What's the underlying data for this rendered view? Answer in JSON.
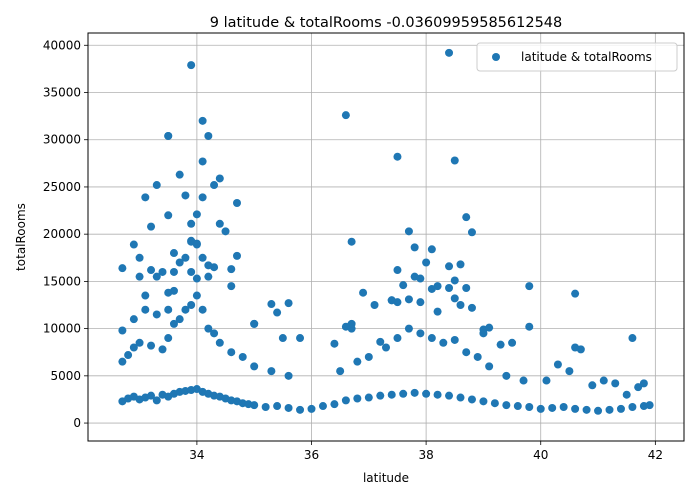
{
  "chart_data": {
    "type": "scatter",
    "title": "9 latitude & totalRooms -0.03609959585612548",
    "xlabel": "latitude",
    "ylabel": "totalRooms",
    "xlim": [
      32.1,
      42.5
    ],
    "ylim": [
      -1900,
      41300
    ],
    "xticks": [
      34,
      36,
      38,
      40,
      42
    ],
    "yticks": [
      0,
      5000,
      10000,
      15000,
      20000,
      25000,
      30000,
      35000,
      40000
    ],
    "grid": true,
    "legend_position": "top-right",
    "series": [
      {
        "name": "latitude & totalRooms",
        "color": "#1f77b4",
        "x": [
          32.7,
          32.8,
          32.9,
          33.0,
          33.1,
          33.2,
          33.3,
          33.4,
          33.5,
          33.6,
          33.7,
          33.8,
          33.9,
          34.0,
          34.1,
          34.2,
          34.3,
          34.4,
          34.5,
          34.6,
          34.7,
          34.8,
          34.9,
          35.0,
          35.2,
          35.4,
          35.6,
          35.8,
          36.0,
          36.2,
          36.4,
          36.6,
          36.8,
          37.0,
          37.2,
          37.4,
          37.6,
          37.8,
          38.0,
          38.2,
          38.4,
          38.6,
          38.8,
          39.0,
          39.2,
          39.4,
          39.6,
          39.8,
          40.0,
          40.2,
          40.4,
          40.6,
          40.8,
          41.0,
          41.2,
          41.4,
          41.6,
          41.8,
          41.9,
          32.7,
          32.8,
          32.9,
          33.0,
          33.2,
          33.4,
          33.5,
          33.6,
          33.7,
          33.8,
          33.9,
          34.0,
          34.1,
          34.2,
          34.3,
          34.4,
          34.6,
          34.8,
          35.0,
          35.3,
          35.6,
          36.5,
          36.8,
          37.0,
          37.3,
          37.5,
          37.7,
          37.9,
          38.1,
          38.3,
          38.5,
          38.7,
          38.9,
          39.1,
          39.4,
          39.7,
          40.1,
          40.5,
          40.9,
          41.3,
          41.7,
          32.7,
          32.9,
          33.1,
          33.3,
          33.6,
          33.9,
          34.1,
          34.3,
          34.6,
          35.0,
          35.5,
          36.7,
          37.1,
          37.4,
          37.8,
          38.2,
          38.6,
          39.0,
          39.5,
          40.3,
          40.7,
          41.1,
          41.5,
          41.8,
          32.7,
          32.9,
          33.0,
          33.1,
          33.2,
          33.3,
          33.4,
          33.5,
          33.5,
          33.6,
          33.7,
          33.8,
          33.9,
          33.9,
          34.0,
          34.1,
          34.1,
          34.2,
          34.3,
          34.4,
          34.5,
          34.7,
          35.0,
          35.3,
          35.4,
          35.6,
          35.8,
          36.4,
          36.6,
          36.7,
          36.9,
          37.2,
          37.4,
          37.5,
          37.6,
          37.7,
          37.8,
          37.9,
          38.0,
          38.1,
          38.2,
          38.4,
          38.5,
          38.6,
          38.7,
          38.8,
          39.0,
          39.1,
          39.3,
          39.8,
          39.8,
          40.6,
          40.6,
          41.6,
          33.0,
          33.1,
          33.2,
          33.3,
          33.5,
          33.5,
          33.6,
          33.7,
          33.8,
          33.9,
          34.0,
          34.0,
          34.1,
          34.2,
          34.4,
          34.6,
          34.7,
          36.7,
          37.5,
          37.7,
          37.9,
          38.1,
          38.4,
          38.5,
          38.7,
          38.8,
          33.5,
          33.9,
          34.0,
          34.2,
          36.6,
          37.5,
          38.4,
          38.5
        ],
        "y": [
          2300,
          2600,
          2800,
          2500,
          2700,
          2900,
          2400,
          3000,
          2800,
          3100,
          3300,
          3400,
          3500,
          3600,
          3300,
          3100,
          2900,
          2800,
          2600,
          2400,
          2300,
          2100,
          2000,
          1900,
          1700,
          1800,
          1600,
          1400,
          1500,
          1800,
          2000,
          2400,
          2600,
          2700,
          2900,
          3000,
          3100,
          3200,
          3100,
          3000,
          2900,
          2700,
          2500,
          2300,
          2100,
          1900,
          1800,
          1700,
          1500,
          1600,
          1700,
          1500,
          1400,
          1300,
          1400,
          1500,
          1700,
          1800,
          1900,
          6500,
          7200,
          8000,
          8500,
          8200,
          7800,
          9000,
          10500,
          11000,
          12000,
          12500,
          13500,
          12000,
          10000,
          9500,
          8500,
          7500,
          7000,
          6000,
          5500,
          5000,
          5500,
          6500,
          7000,
          8000,
          9000,
          10000,
          9500,
          9000,
          8500,
          8800,
          7500,
          7000,
          6000,
          5000,
          4500,
          4500,
          5500,
          4000,
          4200,
          3800,
          9800,
          11000,
          12000,
          11500,
          14000,
          16000,
          17500,
          16500,
          14500,
          10500,
          9000,
          10000,
          12500,
          13000,
          15500,
          14500,
          12500,
          9500,
          8500,
          6200,
          7800,
          4500,
          3000,
          4200,
          16400,
          18900,
          17500,
          13500,
          20800,
          25200,
          16000,
          22000,
          30400,
          16000,
          26300,
          24100,
          37900,
          21100,
          22100,
          32000,
          27700,
          30400,
          25200,
          25900,
          20300,
          23300,
          10500,
          12600,
          11700,
          12700,
          9000,
          8400,
          32600,
          19200,
          13800,
          8600,
          13000,
          28200,
          14600,
          20300,
          18600,
          12800,
          17000,
          18400,
          11800,
          39200,
          27800,
          16800,
          21800,
          20200,
          9900,
          10100,
          8300,
          14500,
          10200,
          13700,
          8000,
          9000,
          15500,
          23900,
          16200,
          15500,
          13800,
          12000,
          18000,
          17000,
          17500,
          19200,
          19000,
          15300,
          23900,
          15500,
          21100,
          16300,
          17700,
          10500,
          16200,
          13100,
          15300,
          14200,
          16600,
          15100,
          14300,
          12200,
          30400,
          19300,
          18900,
          16700,
          10200,
          12800,
          14300,
          13200
        ]
      }
    ]
  }
}
